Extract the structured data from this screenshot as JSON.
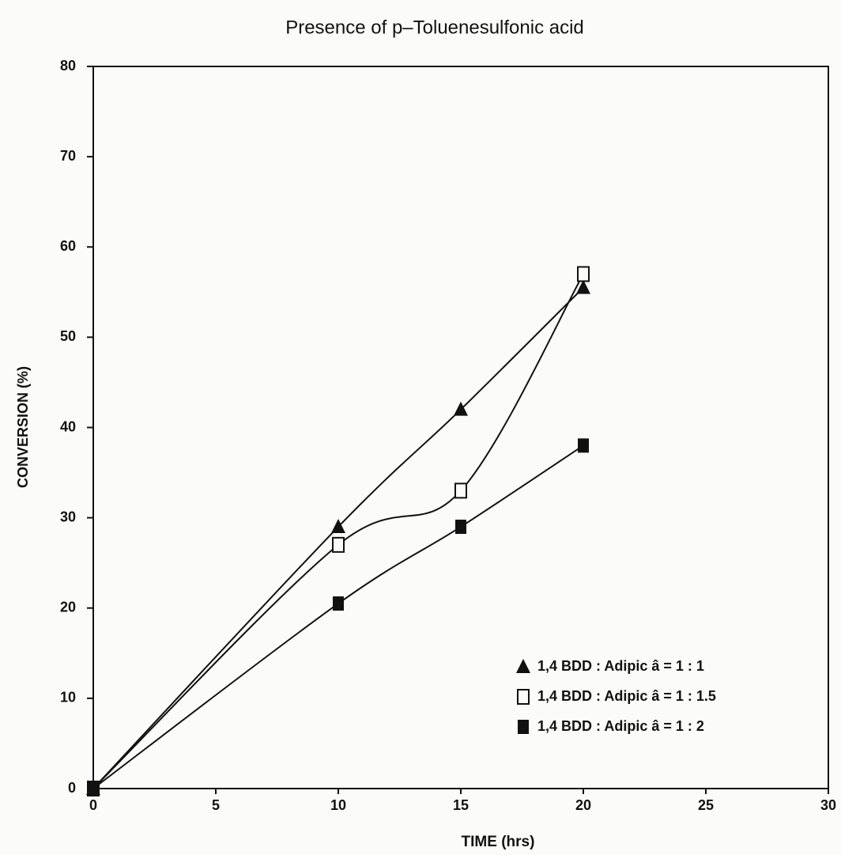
{
  "chart_data": {
    "type": "line",
    "title": "Presence of p–Toluenesulfonic acid",
    "x_label": "TIME (hrs)",
    "y_label": "CONVERSION (%)",
    "xlim": [
      0,
      30
    ],
    "xticks": [
      0,
      5,
      10,
      15,
      20,
      25,
      30
    ],
    "ylim": [
      0,
      80
    ],
    "yticks": [
      0,
      10,
      20,
      30,
      40,
      50,
      60,
      70,
      80
    ],
    "legend": "lower right",
    "series": [
      {
        "name": "1,4 BDD : Adipic â = 1 : 1",
        "marker": "triangle",
        "color": "#111111",
        "x": [
          0,
          10,
          15,
          20
        ],
        "values": [
          0,
          29,
          42,
          55.5
        ]
      },
      {
        "name": "1,4 BDD : Adipic â = 1 : 1.5",
        "marker": "open-square",
        "color": "#111111",
        "x": [
          0,
          10,
          15,
          20
        ],
        "values": [
          0,
          27,
          33,
          57
        ]
      },
      {
        "name": "1,4 BDD : Adipic â = 1 : 2",
        "marker": "square",
        "color": "#111111",
        "x": [
          0,
          10,
          15,
          20
        ],
        "values": [
          0,
          20.5,
          29,
          38
        ]
      }
    ]
  }
}
